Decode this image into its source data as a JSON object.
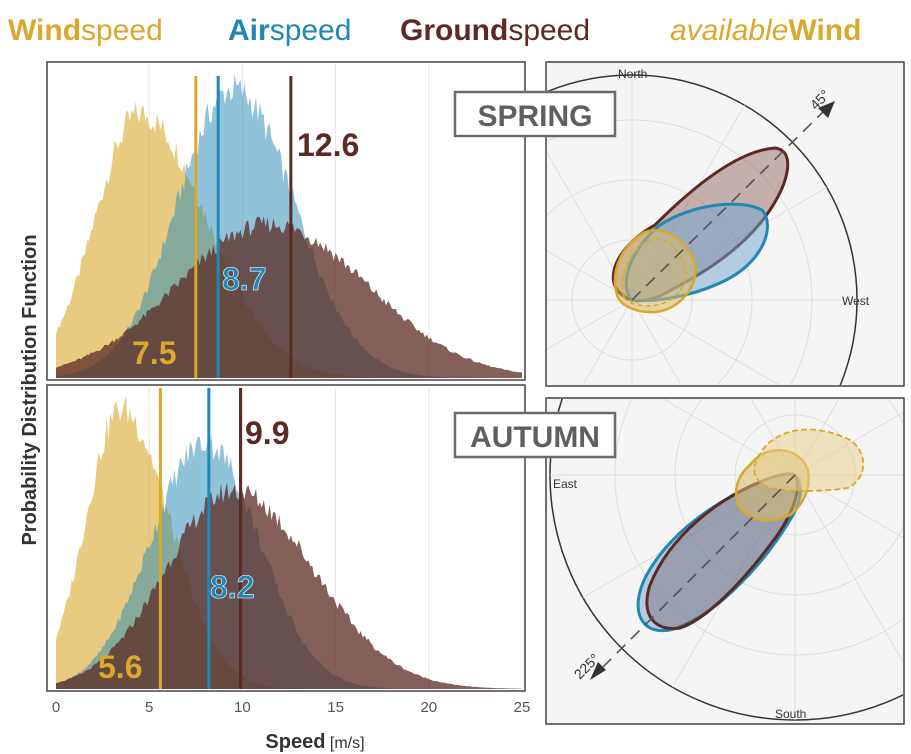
{
  "legend": {
    "wind_bold": "Wind",
    "wind_rest": "speed",
    "air_bold": "Air",
    "air_rest": "speed",
    "ground_bold": "Ground",
    "ground_rest": "speed",
    "avail_ital": "available",
    "avail_bold": "Wind"
  },
  "colors": {
    "wind": "#d9a82c",
    "air": "#2187b5",
    "ground": "#5c2a22",
    "season_box": "#6b6b6b"
  },
  "seasons": {
    "spring": "SPRING",
    "autumn": "AUTUMN"
  },
  "ylabel": "Probability Distribution Function",
  "xlabel_bold": "Speed",
  "xlabel_unit": "[m/s]",
  "polar": {
    "north": "North",
    "west": "West",
    "east": "East",
    "south": "South",
    "angle_spring": "45°",
    "angle_autumn": "225°"
  },
  "chart_data": [
    {
      "type": "area",
      "panel": "spring histogram",
      "x_ticks": [
        "0",
        "5",
        "10",
        "15",
        "20",
        "25"
      ],
      "xlim": [
        0,
        25
      ],
      "series": [
        {
          "name": "Windspeed",
          "peak": 4.5,
          "mean": 7.5,
          "mean_label": "7.5"
        },
        {
          "name": "Airspeed",
          "peak": 9.5,
          "mean": 8.7,
          "mean_label": "8.7"
        },
        {
          "name": "Groundspeed",
          "peak": 11.5,
          "mean": 12.6,
          "mean_label": "12.6"
        }
      ]
    },
    {
      "type": "area",
      "panel": "autumn histogram",
      "x_ticks": [
        "0",
        "5",
        "10",
        "15",
        "20",
        "25"
      ],
      "xlim": [
        0,
        25
      ],
      "series": [
        {
          "name": "Windspeed",
          "peak": 3.5,
          "mean": 5.6,
          "mean_label": "5.6"
        },
        {
          "name": "Airspeed",
          "peak": 8.0,
          "mean": 8.2,
          "mean_label": "8.2"
        },
        {
          "name": "Groundspeed",
          "peak": 9.5,
          "mean": 9.9,
          "mean_label": "9.9"
        }
      ]
    }
  ]
}
